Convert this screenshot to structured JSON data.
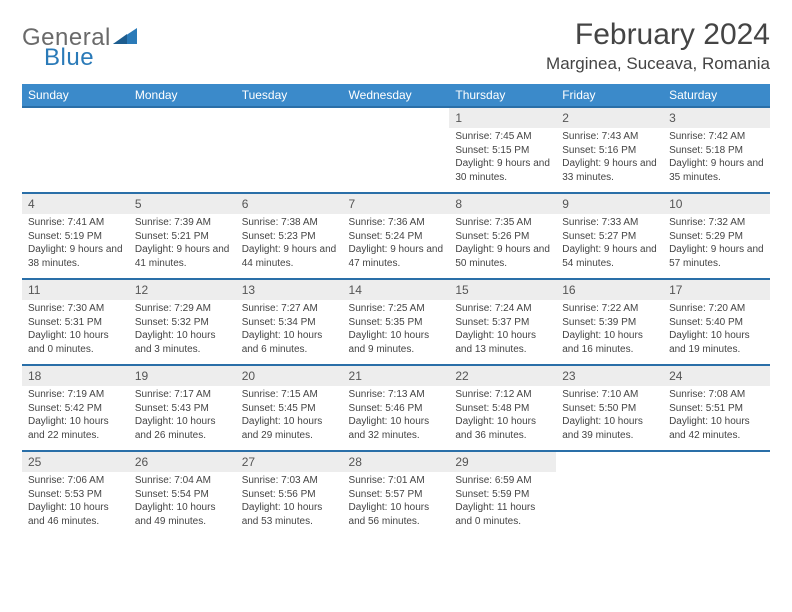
{
  "brand": {
    "name_part1": "General",
    "name_part2": "Blue"
  },
  "title": "February 2024",
  "location": "Marginea, Suceava, Romania",
  "colors": {
    "header_bg": "#3b8aca",
    "header_text": "#ffffff",
    "date_row_bg": "#ededed",
    "date_row_border": "#2a6fa8",
    "body_text": "#444444",
    "logo_blue": "#2a7ab8",
    "logo_grey": "#6a6a6a"
  },
  "typography": {
    "title_fontsize": 30,
    "location_fontsize": 17,
    "dayhead_fontsize": 12,
    "date_fontsize": 12,
    "cell_fontsize": 10
  },
  "day_names": [
    "Sunday",
    "Monday",
    "Tuesday",
    "Wednesday",
    "Thursday",
    "Friday",
    "Saturday"
  ],
  "weeks": [
    {
      "dates": [
        "",
        "",
        "",
        "",
        "1",
        "2",
        "3"
      ],
      "info": [
        "",
        "",
        "",
        "",
        "Sunrise: 7:45 AM\nSunset: 5:15 PM\nDaylight: 9 hours and 30 minutes.",
        "Sunrise: 7:43 AM\nSunset: 5:16 PM\nDaylight: 9 hours and 33 minutes.",
        "Sunrise: 7:42 AM\nSunset: 5:18 PM\nDaylight: 9 hours and 35 minutes."
      ]
    },
    {
      "dates": [
        "4",
        "5",
        "6",
        "7",
        "8",
        "9",
        "10"
      ],
      "info": [
        "Sunrise: 7:41 AM\nSunset: 5:19 PM\nDaylight: 9 hours and 38 minutes.",
        "Sunrise: 7:39 AM\nSunset: 5:21 PM\nDaylight: 9 hours and 41 minutes.",
        "Sunrise: 7:38 AM\nSunset: 5:23 PM\nDaylight: 9 hours and 44 minutes.",
        "Sunrise: 7:36 AM\nSunset: 5:24 PM\nDaylight: 9 hours and 47 minutes.",
        "Sunrise: 7:35 AM\nSunset: 5:26 PM\nDaylight: 9 hours and 50 minutes.",
        "Sunrise: 7:33 AM\nSunset: 5:27 PM\nDaylight: 9 hours and 54 minutes.",
        "Sunrise: 7:32 AM\nSunset: 5:29 PM\nDaylight: 9 hours and 57 minutes."
      ]
    },
    {
      "dates": [
        "11",
        "12",
        "13",
        "14",
        "15",
        "16",
        "17"
      ],
      "info": [
        "Sunrise: 7:30 AM\nSunset: 5:31 PM\nDaylight: 10 hours and 0 minutes.",
        "Sunrise: 7:29 AM\nSunset: 5:32 PM\nDaylight: 10 hours and 3 minutes.",
        "Sunrise: 7:27 AM\nSunset: 5:34 PM\nDaylight: 10 hours and 6 minutes.",
        "Sunrise: 7:25 AM\nSunset: 5:35 PM\nDaylight: 10 hours and 9 minutes.",
        "Sunrise: 7:24 AM\nSunset: 5:37 PM\nDaylight: 10 hours and 13 minutes.",
        "Sunrise: 7:22 AM\nSunset: 5:39 PM\nDaylight: 10 hours and 16 minutes.",
        "Sunrise: 7:20 AM\nSunset: 5:40 PM\nDaylight: 10 hours and 19 minutes."
      ]
    },
    {
      "dates": [
        "18",
        "19",
        "20",
        "21",
        "22",
        "23",
        "24"
      ],
      "info": [
        "Sunrise: 7:19 AM\nSunset: 5:42 PM\nDaylight: 10 hours and 22 minutes.",
        "Sunrise: 7:17 AM\nSunset: 5:43 PM\nDaylight: 10 hours and 26 minutes.",
        "Sunrise: 7:15 AM\nSunset: 5:45 PM\nDaylight: 10 hours and 29 minutes.",
        "Sunrise: 7:13 AM\nSunset: 5:46 PM\nDaylight: 10 hours and 32 minutes.",
        "Sunrise: 7:12 AM\nSunset: 5:48 PM\nDaylight: 10 hours and 36 minutes.",
        "Sunrise: 7:10 AM\nSunset: 5:50 PM\nDaylight: 10 hours and 39 minutes.",
        "Sunrise: 7:08 AM\nSunset: 5:51 PM\nDaylight: 10 hours and 42 minutes."
      ]
    },
    {
      "dates": [
        "25",
        "26",
        "27",
        "28",
        "29",
        "",
        ""
      ],
      "info": [
        "Sunrise: 7:06 AM\nSunset: 5:53 PM\nDaylight: 10 hours and 46 minutes.",
        "Sunrise: 7:04 AM\nSunset: 5:54 PM\nDaylight: 10 hours and 49 minutes.",
        "Sunrise: 7:03 AM\nSunset: 5:56 PM\nDaylight: 10 hours and 53 minutes.",
        "Sunrise: 7:01 AM\nSunset: 5:57 PM\nDaylight: 10 hours and 56 minutes.",
        "Sunrise: 6:59 AM\nSunset: 5:59 PM\nDaylight: 11 hours and 0 minutes.",
        "",
        ""
      ]
    }
  ]
}
